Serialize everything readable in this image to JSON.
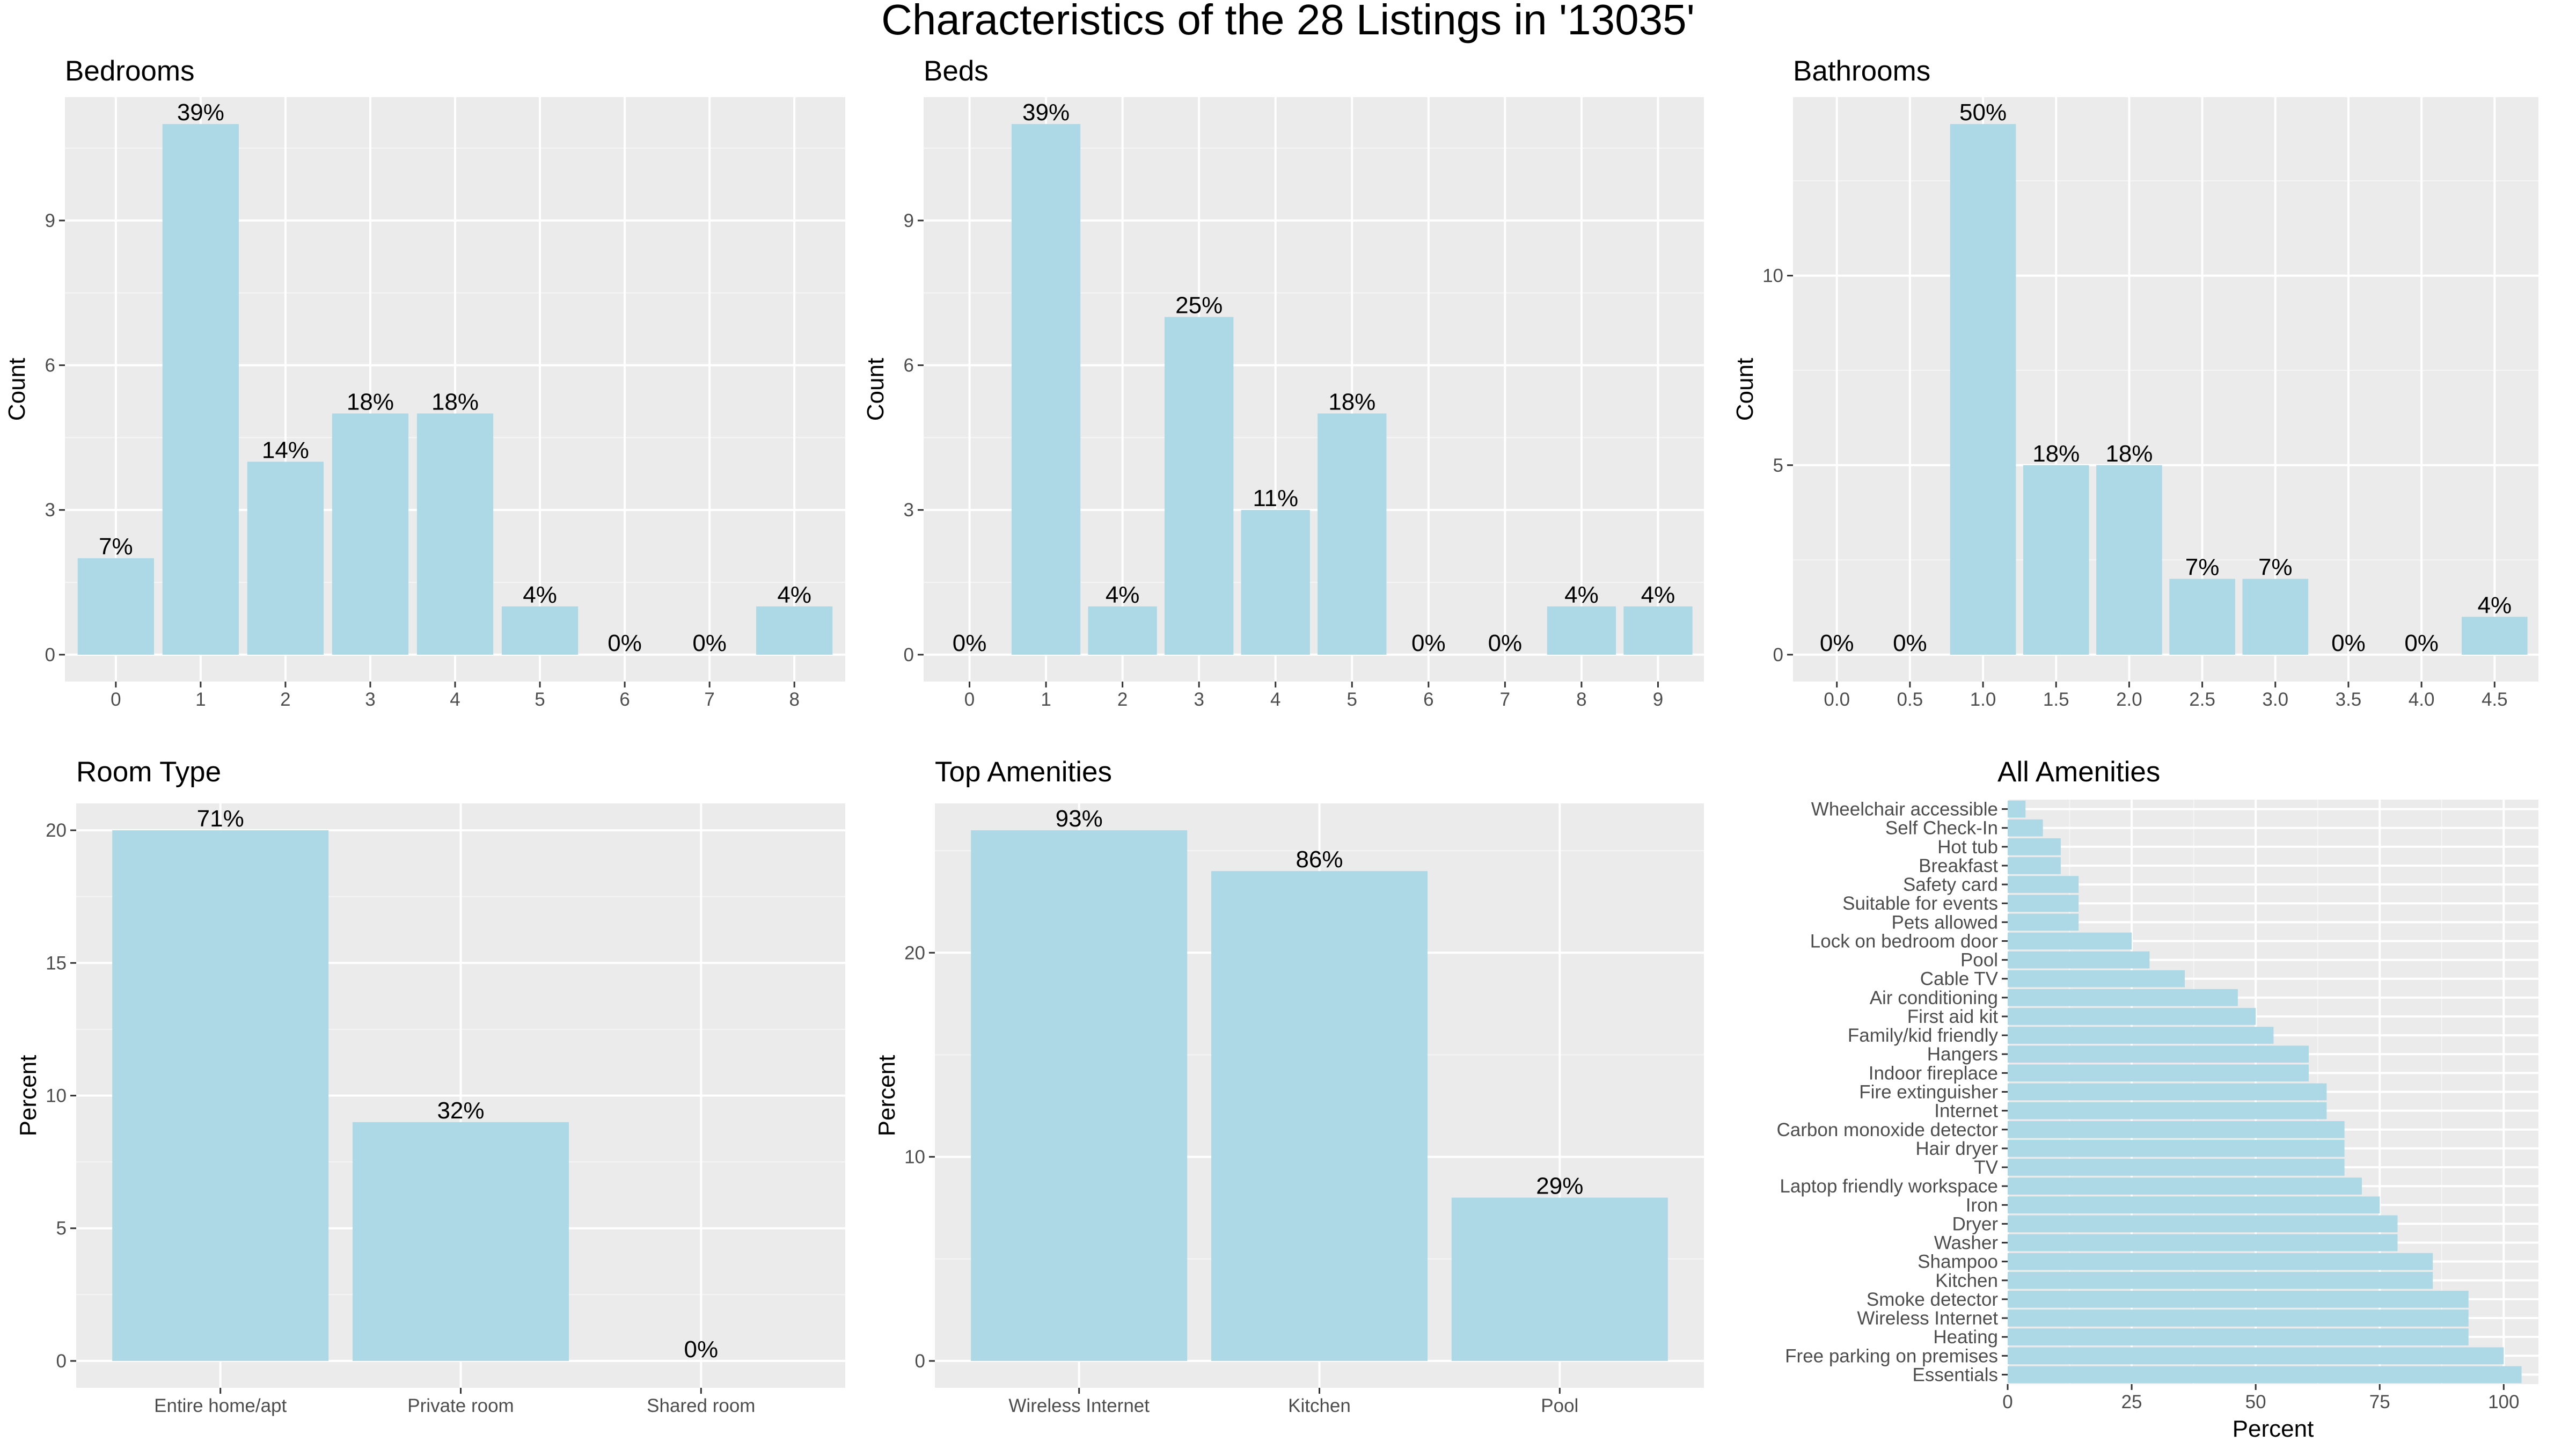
{
  "figure_title": "Characteristics of the 28 Listings in '13035'",
  "colors": {
    "bar": "#add8e6",
    "panel": "#ebebeb",
    "grid_major": "#ffffff",
    "text": "#000000",
    "tick_text": "#4d4d4d"
  },
  "chart_data": [
    {
      "id": "bedrooms",
      "type": "bar",
      "title": "Bedrooms",
      "xlabel": "",
      "ylabel": "Count",
      "categories": [
        "0",
        "1",
        "2",
        "3",
        "4",
        "5",
        "6",
        "7",
        "8"
      ],
      "values": [
        2,
        11,
        4,
        5,
        5,
        1,
        0,
        0,
        1
      ],
      "labels": [
        "7%",
        "39%",
        "14%",
        "18%",
        "18%",
        "4%",
        "0%",
        "0%",
        "4%"
      ],
      "ylim": [
        0,
        11
      ],
      "yticks": [
        0,
        3,
        6,
        9
      ],
      "grid": true
    },
    {
      "id": "beds",
      "type": "bar",
      "title": "Beds",
      "xlabel": "",
      "ylabel": "Count",
      "categories": [
        "0",
        "1",
        "2",
        "3",
        "4",
        "5",
        "6",
        "7",
        "8",
        "9"
      ],
      "values": [
        0,
        11,
        1,
        7,
        3,
        5,
        0,
        0,
        1,
        1
      ],
      "labels": [
        "0%",
        "39%",
        "4%",
        "25%",
        "11%",
        "18%",
        "0%",
        "0%",
        "4%",
        "4%"
      ],
      "ylim": [
        0,
        11
      ],
      "yticks": [
        0,
        3,
        6,
        9
      ],
      "grid": true
    },
    {
      "id": "bathrooms",
      "type": "bar",
      "title": "Bathrooms",
      "xlabel": "",
      "ylabel": "Count",
      "categories": [
        "0.0",
        "0.5",
        "1.0",
        "1.5",
        "2.0",
        "2.5",
        "3.0",
        "3.5",
        "4.0",
        "4.5"
      ],
      "values": [
        0,
        0,
        14,
        5,
        5,
        2,
        2,
        0,
        0,
        1
      ],
      "labels": [
        "0%",
        "0%",
        "50%",
        "18%",
        "18%",
        "7%",
        "7%",
        "0%",
        "0%",
        "4%"
      ],
      "ylim": [
        0,
        14
      ],
      "yticks": [
        0,
        5,
        10
      ],
      "grid": true
    },
    {
      "id": "room_type",
      "type": "bar",
      "title": "Room Type",
      "xlabel": "",
      "ylabel": "Percent",
      "categories": [
        "Entire home/apt",
        "Private room",
        "Shared room"
      ],
      "values": [
        20,
        9,
        0
      ],
      "labels": [
        "71%",
        "32%",
        "0%"
      ],
      "ylim": [
        0,
        20
      ],
      "yticks": [
        0,
        5,
        10,
        15,
        20
      ],
      "grid": true
    },
    {
      "id": "top_amenities",
      "type": "bar",
      "title": "Top Amenities",
      "xlabel": "",
      "ylabel": "Percent",
      "categories": [
        "Wireless Internet",
        "Kitchen",
        "Pool"
      ],
      "values": [
        26,
        24,
        8
      ],
      "labels": [
        "93%",
        "86%",
        "29%"
      ],
      "ylim": [
        0,
        26
      ],
      "yticks": [
        0,
        10,
        20
      ],
      "grid": true
    },
    {
      "id": "all_amenities",
      "type": "bar",
      "orientation": "horizontal",
      "title": "All Amenities",
      "xlabel": "Percent",
      "ylabel": "",
      "categories": [
        "Wheelchair accessible",
        "Self Check-In",
        "Hot tub",
        "Breakfast",
        "Safety card",
        "Suitable for events",
        "Pets allowed",
        "Lock on bedroom door",
        "Pool",
        "Cable TV",
        "Air conditioning",
        "First aid kit",
        "Family/kid friendly",
        "Hangers",
        "Indoor fireplace",
        "Fire extinguisher",
        "Internet",
        "Carbon monoxide detector",
        "Hair dryer",
        "TV",
        "Laptop friendly workspace",
        "Iron",
        "Dryer",
        "Washer",
        "Shampoo",
        "Kitchen",
        "Smoke detector",
        "Wireless Internet",
        "Heating",
        "Free parking on premises",
        "Essentials"
      ],
      "values": [
        3.6,
        7.1,
        10.7,
        10.7,
        14.3,
        14.3,
        14.3,
        25,
        28.6,
        35.7,
        46.4,
        50,
        53.6,
        60.7,
        60.7,
        64.3,
        64.3,
        67.9,
        67.9,
        67.9,
        71.4,
        75,
        78.6,
        78.6,
        85.7,
        85.7,
        92.9,
        92.9,
        92.9,
        100,
        103.6
      ],
      "xlim": [
        0,
        107
      ],
      "xticks": [
        0,
        25,
        50,
        75,
        100
      ],
      "grid": true
    }
  ]
}
